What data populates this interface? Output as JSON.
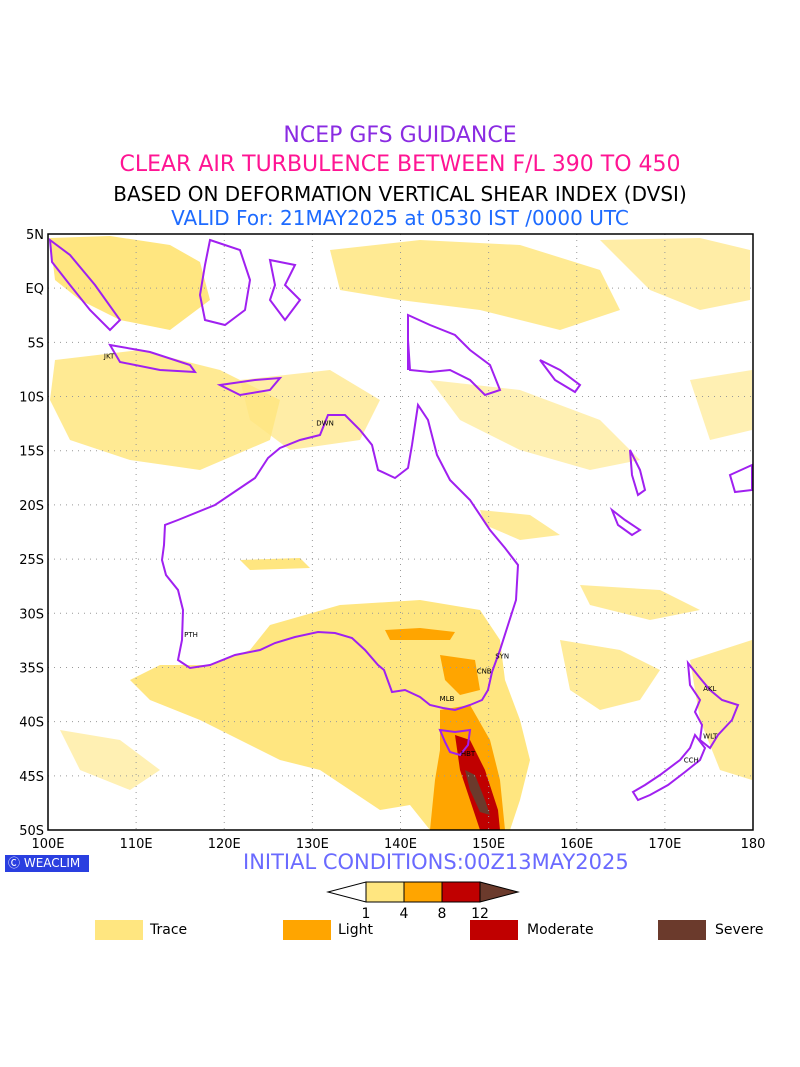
{
  "titles": {
    "line1": "NCEP GFS GUIDANCE",
    "line2": "CLEAR AIR TURBULENCE BETWEEN F/L 390 TO 450",
    "line3": "BASED ON DEFORMATION VERTICAL SHEAR INDEX (DVSI)",
    "line4": "VALID For: 21MAY2025 at 0530 IST /0000 UTC"
  },
  "map": {
    "lon_range": [
      100,
      180
    ],
    "lat_range": [
      -50,
      5
    ],
    "lat_labels": [
      "5N",
      "EQ",
      "5S",
      "10S",
      "15S",
      "20S",
      "25S",
      "30S",
      "35S",
      "40S",
      "45S",
      "50S"
    ],
    "lon_labels": [
      "100E",
      "110E",
      "120E",
      "130E",
      "140E",
      "150E",
      "160E",
      "170E",
      "180"
    ],
    "grid": "dotted",
    "cities": [
      {
        "code": "JKT",
        "lon": 106.8,
        "lat": -6.2
      },
      {
        "code": "DWN",
        "lon": 130.9,
        "lat": -12.4
      },
      {
        "code": "PTH",
        "lon": 115.9,
        "lat": -31.9
      },
      {
        "code": "SYN",
        "lon": 151.2,
        "lat": -33.9
      },
      {
        "code": "CNB",
        "lon": 149.1,
        "lat": -35.3
      },
      {
        "code": "MLB",
        "lon": 144.9,
        "lat": -37.8
      },
      {
        "code": "HBT",
        "lon": 147.3,
        "lat": -42.9
      },
      {
        "code": "AKL",
        "lon": 174.8,
        "lat": -36.9
      },
      {
        "code": "WLT",
        "lon": 174.8,
        "lat": -41.3
      },
      {
        "code": "CCH",
        "lon": 172.6,
        "lat": -43.5
      }
    ],
    "colors": {
      "coast": "#a020f0",
      "trace": "#ffe680",
      "light": "#ffa500",
      "moderate": "#c00000",
      "severe": "#6b3a2c"
    }
  },
  "logo": "WEACLIM",
  "initial_conditions": "INITIAL CONDITIONS:00Z13MAY2025",
  "colorbar": {
    "levels": [
      "1",
      "4",
      "8",
      "12"
    ]
  },
  "legend": [
    {
      "label": "Trace",
      "color": "#ffe680"
    },
    {
      "label": "Light",
      "color": "#ffa500"
    },
    {
      "label": "Moderate",
      "color": "#c00000"
    },
    {
      "label": "Severe",
      "color": "#6b3a2c"
    }
  ]
}
